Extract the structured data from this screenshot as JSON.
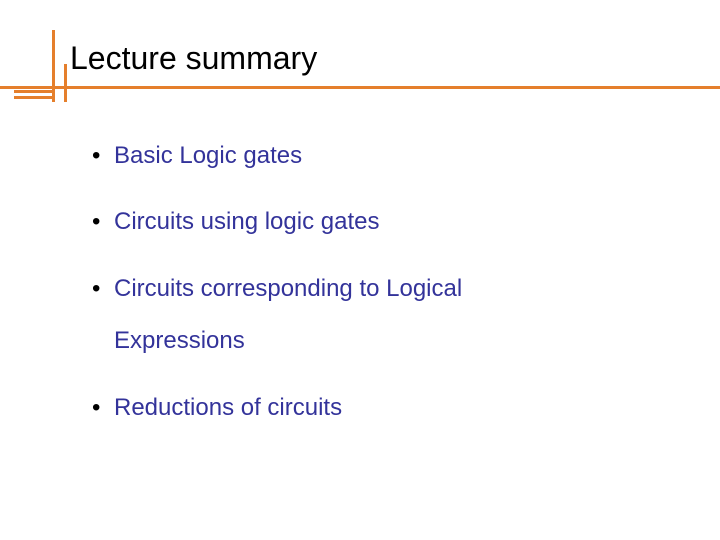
{
  "title": "Lecture summary",
  "bullets": {
    "0": "Basic Logic gates",
    "1": "Circuits using logic gates",
    "2": {
      "line1": "Circuits corresponding to Logical",
      "line2": "Expressions"
    },
    "3": "Reductions of circuits"
  },
  "style": {
    "slide_width": 720,
    "slide_height": 540,
    "background_color": "#ffffff",
    "title_color": "#000000",
    "title_fontsize": 32,
    "bullet_text_color": "#33339a",
    "bullet_marker_color": "#000000",
    "bullet_fontsize": 24,
    "rule_color": "#e57f2c",
    "rule_thickness": 3,
    "font_family": "Arial"
  }
}
